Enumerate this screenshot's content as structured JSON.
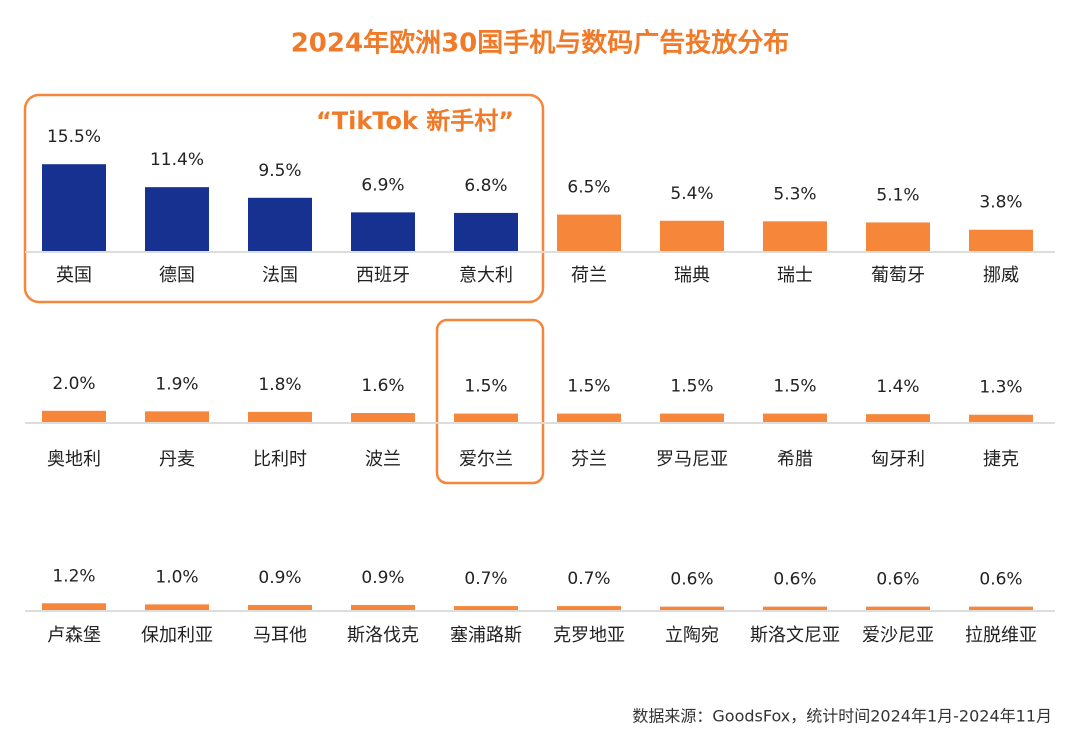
{
  "title": "2024年欧洲30国手机与数码广告投放分布",
  "source": "数据来源：GoodsFox，统计时间2024年1月-2024年11月",
  "chart_data": [
    {
      "type": "bar",
      "annotation": "“TikTok 新手村”",
      "categories": [
        "英国",
        "德国",
        "法国",
        "西班牙",
        "意大利",
        "荷兰",
        "瑞典",
        "瑞士",
        "葡萄牙",
        "挪威"
      ],
      "values": [
        15.5,
        11.4,
        9.5,
        6.9,
        6.8,
        6.5,
        5.4,
        5.3,
        5.1,
        3.8
      ],
      "value_labels": [
        "15.5%",
        "11.4%",
        "9.5%",
        "6.9%",
        "6.8%",
        "6.5%",
        "5.4%",
        "5.3%",
        "5.1%",
        "3.8%"
      ],
      "colors": [
        "#16318f",
        "#16318f",
        "#16318f",
        "#16318f",
        "#16318f",
        "#f5863a",
        "#f5863a",
        "#f5863a",
        "#f5863a",
        "#f5863a"
      ]
    },
    {
      "type": "bar",
      "categories": [
        "奥地利",
        "丹麦",
        "比利时",
        "波兰",
        "爱尔兰",
        "芬兰",
        "罗马尼亚",
        "希腊",
        "匈牙利",
        "捷克"
      ],
      "values": [
        2.0,
        1.9,
        1.8,
        1.6,
        1.5,
        1.5,
        1.5,
        1.5,
        1.4,
        1.3
      ],
      "value_labels": [
        "2.0%",
        "1.9%",
        "1.8%",
        "1.6%",
        "1.5%",
        "1.5%",
        "1.5%",
        "1.5%",
        "1.4%",
        "1.3%"
      ],
      "colors": [
        "#f5863a",
        "#f5863a",
        "#f5863a",
        "#f5863a",
        "#f5863a",
        "#f5863a",
        "#f5863a",
        "#f5863a",
        "#f5863a",
        "#f5863a"
      ]
    },
    {
      "type": "bar",
      "categories": [
        "卢森堡",
        "保加利亚",
        "马耳他",
        "斯洛伐克",
        "塞浦路斯",
        "克罗地亚",
        "立陶宛",
        "斯洛文尼亚",
        "爱沙尼亚",
        "拉脱维亚"
      ],
      "values": [
        1.2,
        1.0,
        0.9,
        0.9,
        0.7,
        0.7,
        0.6,
        0.6,
        0.6,
        0.6
      ],
      "value_labels": [
        "1.2%",
        "1.0%",
        "0.9%",
        "0.9%",
        "0.7%",
        "0.7%",
        "0.6%",
        "0.6%",
        "0.6%",
        "0.6%"
      ],
      "colors": [
        "#f5863a",
        "#f5863a",
        "#f5863a",
        "#f5863a",
        "#f5863a",
        "#f5863a",
        "#f5863a",
        "#f5863a",
        "#f5863a",
        "#f5863a"
      ]
    }
  ]
}
